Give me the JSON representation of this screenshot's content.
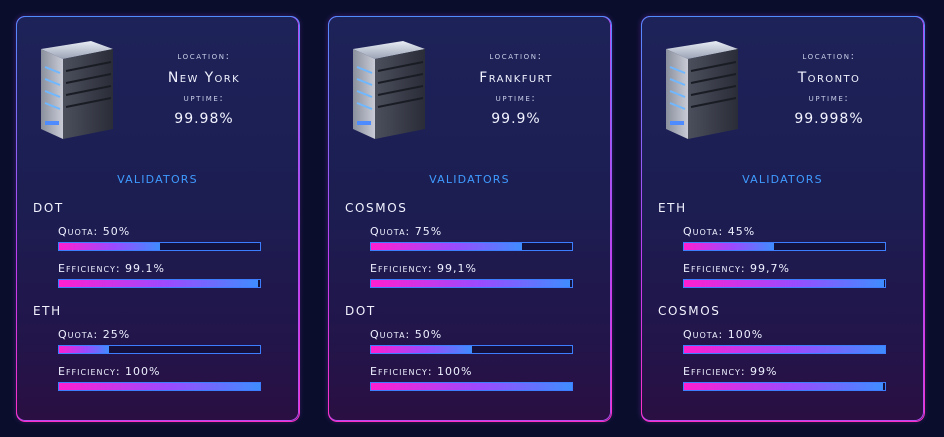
{
  "cards": [
    {
      "location_label": "location:",
      "location": "New York",
      "uptime_label": "uptime:",
      "uptime": "99.98%",
      "validators_title": "VALIDATORS",
      "validators": [
        {
          "name": "DOT",
          "quota_label": "Quota: 50%",
          "quota": 50,
          "efficiency_label": "Efficiency: 99.1%",
          "efficiency": 99.1
        },
        {
          "name": "ETH",
          "quota_label": "Quota: 25%",
          "quota": 25,
          "efficiency_label": "Efficiency: 100%",
          "efficiency": 100
        }
      ]
    },
    {
      "location_label": "location:",
      "location": "Frankfurt",
      "uptime_label": "uptime:",
      "uptime": "99.9%",
      "validators_title": "VALIDATORS",
      "validators": [
        {
          "name": "COSMOS",
          "quota_label": "Quota: 75%",
          "quota": 75,
          "efficiency_label": "Efficiency: 99,1%",
          "efficiency": 99.1
        },
        {
          "name": "DOT",
          "quota_label": "Quota: 50%",
          "quota": 50,
          "efficiency_label": "Efficiency: 100%",
          "efficiency": 100
        }
      ]
    },
    {
      "location_label": "location:",
      "location": "Toronto",
      "uptime_label": "uptime:",
      "uptime": "99.998%",
      "validators_title": "VALIDATORS",
      "validators": [
        {
          "name": "ETH",
          "quota_label": "Quota: 45%",
          "quota": 45,
          "efficiency_label": "Efficiency: 99,7%",
          "efficiency": 99.7
        },
        {
          "name": "COSMOS",
          "quota_label": "Quota: 100%",
          "quota": 100,
          "efficiency_label": "Efficiency: 99%",
          "efficiency": 99
        }
      ]
    }
  ],
  "icons": {
    "server": "server-icon"
  },
  "colors": {
    "accent_blue": "#3f9bff",
    "accent_pink": "#ff1fd0",
    "background": "#0a0e2c"
  }
}
